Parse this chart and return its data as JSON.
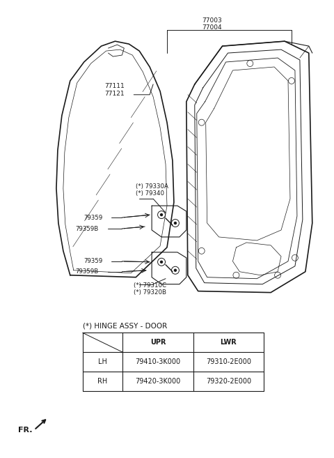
{
  "bg_color": "#ffffff",
  "line_color": "#1a1a1a",
  "text_color": "#1a1a1a",
  "label_fontsize": 6.5,
  "table_fontsize": 7.0,
  "hinge_title": "(*) HINGE ASSY - DOOR",
  "table_data": [
    [
      "",
      "UPR",
      "LWR"
    ],
    [
      "LH",
      "79410-3K000",
      "79310-2E000"
    ],
    [
      "RH",
      "79420-3K000",
      "79320-2E000"
    ]
  ]
}
